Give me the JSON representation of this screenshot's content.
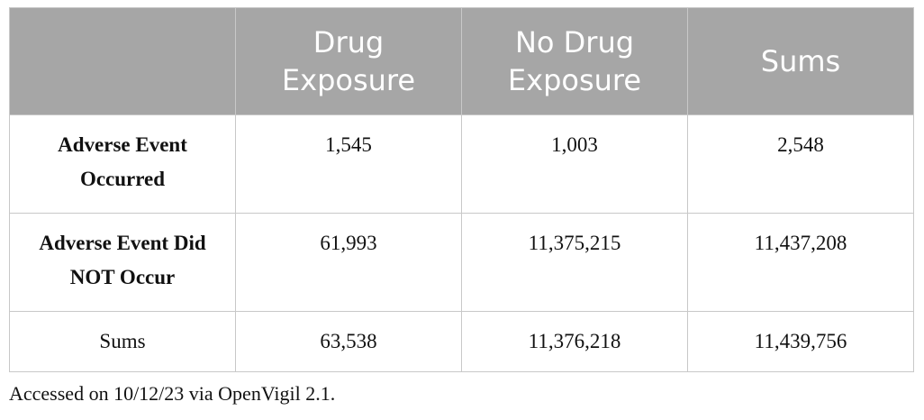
{
  "table": {
    "header": [
      "Drug Exposure",
      "No Drug Exposure",
      "Sums"
    ],
    "rows": [
      [
        "Adverse Event Occurred",
        "1,545",
        "1,003",
        "2,548"
      ],
      [
        "Adverse Event Did NOT Occur",
        "61,993",
        "11,375,215",
        "11,437,208"
      ],
      [
        "Sums",
        "63,538",
        "11,376,218",
        "11,439,756"
      ]
    ]
  },
  "footnote": "Accessed on 10/12/23 via OpenVigil 2.1."
}
